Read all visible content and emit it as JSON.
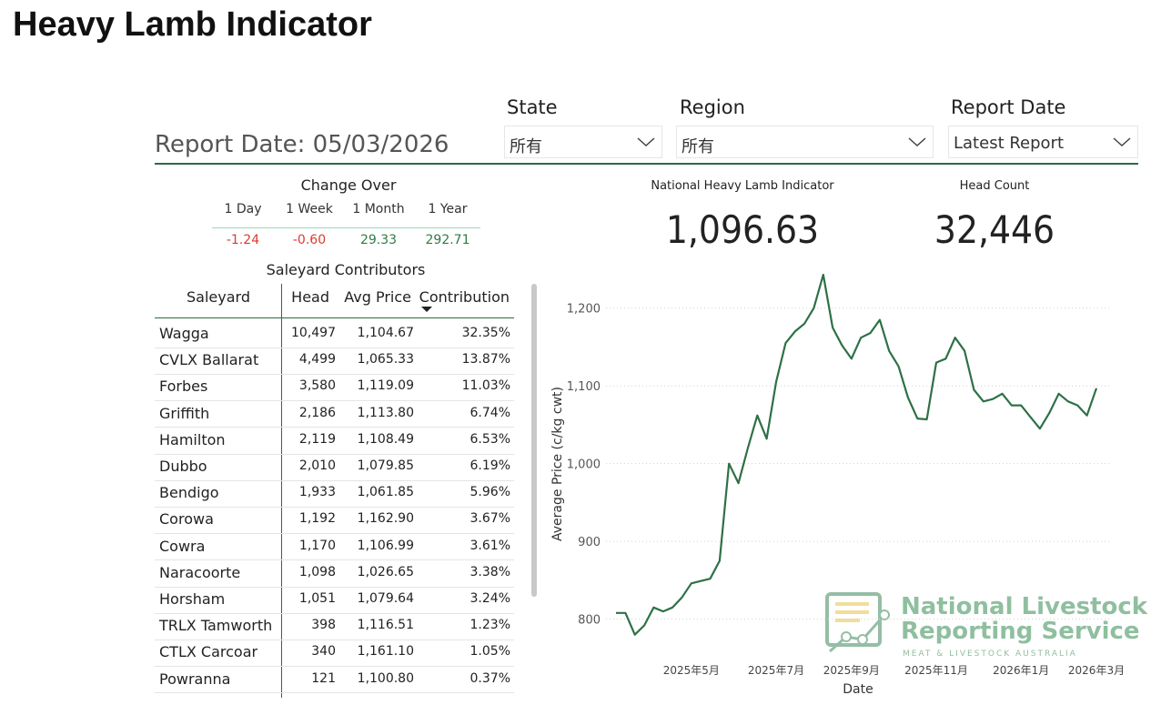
{
  "header": {
    "title": "Heavy Lamb Indicator",
    "report_date": "Report Date: 05/03/2026"
  },
  "filters": [
    {
      "label": "State",
      "value": "所有"
    },
    {
      "label": "Region",
      "value": "所有"
    },
    {
      "label": "Report Date",
      "value": "Latest Report"
    }
  ],
  "change_over": {
    "title": "Change Over",
    "columns": [
      "1 Day",
      "1 Week",
      "1 Month",
      "1 Year"
    ],
    "values": [
      "-1.24",
      "-0.60",
      "29.33",
      "292.71"
    ]
  },
  "saleyards": {
    "title": "Saleyard Contributors",
    "columns": [
      "Saleyard",
      "Head",
      "Avg Price",
      "Contribution"
    ],
    "rows": [
      [
        "Wagga",
        "10,497",
        "1,104.67",
        "32.35%"
      ],
      [
        "CVLX Ballarat",
        "4,499",
        "1,065.33",
        "13.87%"
      ],
      [
        "Forbes",
        "3,580",
        "1,119.09",
        "11.03%"
      ],
      [
        "Griffith",
        "2,186",
        "1,113.80",
        "6.74%"
      ],
      [
        "Hamilton",
        "2,119",
        "1,108.49",
        "6.53%"
      ],
      [
        "Dubbo",
        "2,010",
        "1,079.85",
        "6.19%"
      ],
      [
        "Bendigo",
        "1,933",
        "1,061.85",
        "5.96%"
      ],
      [
        "Corowa",
        "1,192",
        "1,162.90",
        "3.67%"
      ],
      [
        "Cowra",
        "1,170",
        "1,106.99",
        "3.61%"
      ],
      [
        "Naracoorte",
        "1,098",
        "1,026.65",
        "3.38%"
      ],
      [
        "Horsham",
        "1,051",
        "1,079.64",
        "3.24%"
      ],
      [
        "TRLX Tamworth",
        "398",
        "1,116.51",
        "1.23%"
      ],
      [
        "CTLX Carcoar",
        "340",
        "1,161.10",
        "1.05%"
      ],
      [
        "Powranna",
        "121",
        "1,100.80",
        "0.37%"
      ]
    ]
  },
  "kpis": [
    {
      "label": "National Heavy Lamb Indicator",
      "value": "1,096.63"
    },
    {
      "label": "Head Count",
      "value": "32,446"
    }
  ],
  "logo": {
    "line1": "National Livestock",
    "line2": "Reporting Service",
    "tagline": "MEAT & LIVESTOCK AUSTRALIA"
  },
  "chart_data": {
    "type": "line",
    "x_label": "Date",
    "y_label": "Average Price (c/kg cwt)",
    "color": "#2e7047",
    "grid": true,
    "categories": [
      null,
      null,
      null,
      null,
      null,
      null,
      null,
      null,
      "2025年5月",
      null,
      null,
      null,
      null,
      null,
      null,
      null,
      null,
      "2025年7月",
      null,
      null,
      null,
      null,
      null,
      null,
      null,
      "2025年9月",
      null,
      null,
      null,
      null,
      null,
      null,
      null,
      null,
      "2025年11月",
      null,
      null,
      null,
      null,
      null,
      null,
      null,
      null,
      "2026年1月",
      null,
      null,
      null,
      null,
      null,
      null,
      null,
      "2026年3月"
    ],
    "values": [
      808,
      808,
      780,
      792,
      815,
      810,
      815,
      828,
      846,
      849,
      852,
      875,
      1000,
      975,
      1020,
      1062,
      1032,
      1105,
      1155,
      1170,
      1180,
      1200,
      1243,
      1175,
      1152,
      1135,
      1162,
      1168,
      1185,
      1145,
      1125,
      1085,
      1058,
      1057,
      1130,
      1135,
      1162,
      1145,
      1095,
      1080,
      1083,
      1090,
      1075,
      1075,
      1060,
      1045,
      1065,
      1090,
      1080,
      1075,
      1062,
      1097
    ],
    "ylim": [
      775,
      1250
    ],
    "yticks": [
      800,
      900,
      {
        "value": 1000,
        "label": "1,000"
      },
      {
        "value": 1100,
        "label": "1,100"
      },
      {
        "value": 1200,
        "label": "1,200"
      }
    ]
  }
}
